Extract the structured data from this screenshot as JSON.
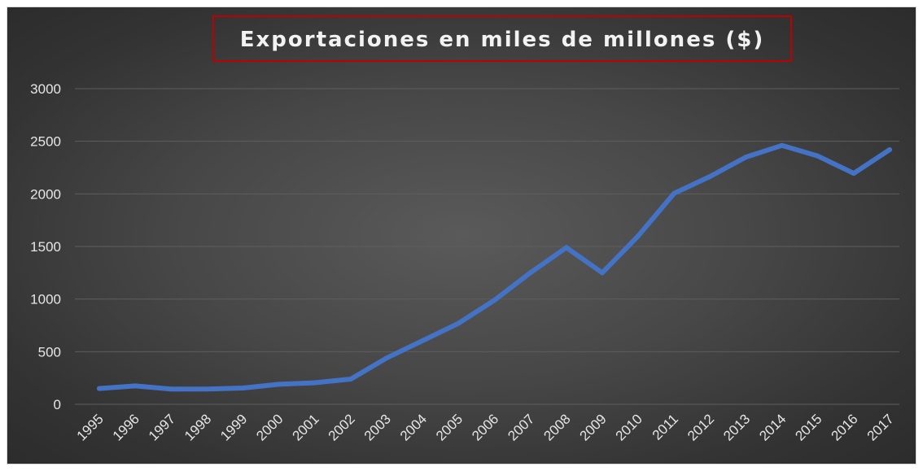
{
  "chart_data": {
    "type": "line",
    "title": "Exportaciones en miles de millones ($)",
    "xlabel": "",
    "ylabel": "",
    "categories": [
      "1995",
      "1996",
      "1997",
      "1998",
      "1999",
      "2000",
      "2001",
      "2002",
      "2003",
      "2004",
      "2005",
      "2006",
      "2007",
      "2008",
      "2009",
      "2010",
      "2011",
      "2012",
      "2013",
      "2014",
      "2015",
      "2016",
      "2017"
    ],
    "series": [
      {
        "values": [
          150,
          175,
          145,
          145,
          155,
          190,
          205,
          240,
          440,
          605,
          770,
          990,
          1250,
          1490,
          1250,
          1600,
          2005,
          2165,
          2350,
          2460,
          2360,
          2195,
          2420
        ]
      }
    ],
    "ylim": [
      0,
      3000
    ],
    "yticks": [
      0,
      500,
      1000,
      1500,
      2000,
      2500,
      3000
    ],
    "grid": true,
    "legend": "none",
    "colors": {
      "line": "#4472c4",
      "grid": "#5e5e5e",
      "title_box": "#c00000",
      "text": "#e6e6e6"
    }
  }
}
